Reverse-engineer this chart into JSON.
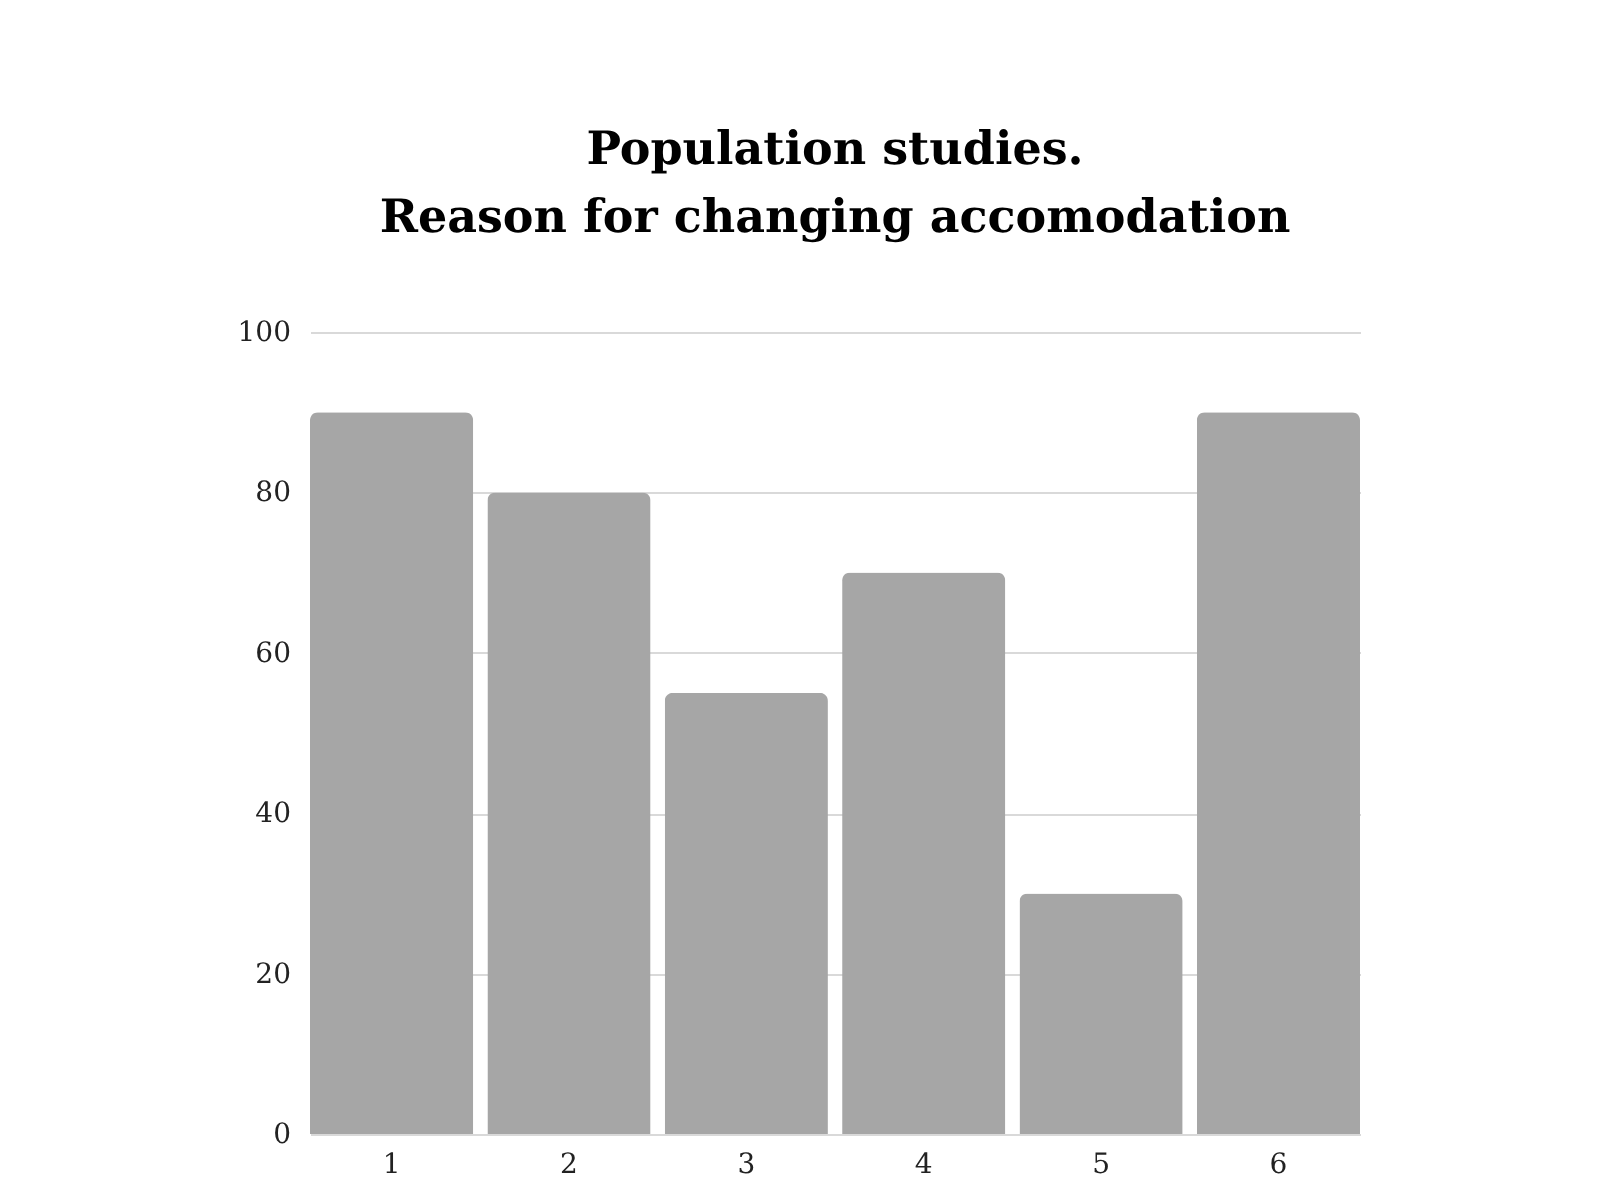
{
  "chart_data": {
    "type": "bar",
    "title": "Population studies.\nReason for changing accomodation",
    "categories": [
      "1",
      "2",
      "3",
      "4",
      "5",
      "6"
    ],
    "values": [
      90,
      80,
      55,
      70,
      30,
      90
    ],
    "color": "#a6a6a6",
    "ylim": [
      0,
      100
    ],
    "yticks": [
      0,
      20,
      40,
      60,
      80,
      100
    ],
    "grid": "y"
  }
}
